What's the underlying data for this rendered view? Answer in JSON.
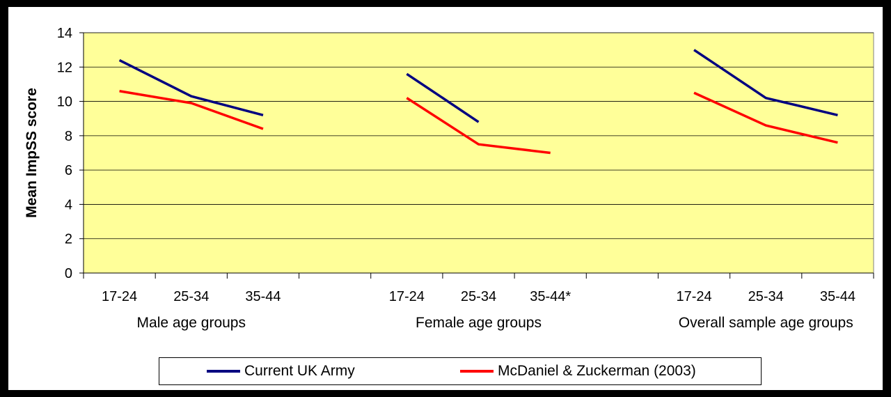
{
  "chart_data": {
    "type": "line",
    "ylabel": "Mean ImpSS score",
    "ylim": [
      0,
      14
    ],
    "yticks": [
      "0",
      "2",
      "4",
      "6",
      "8",
      "10",
      "12",
      "14"
    ],
    "grid": true,
    "plot_background": "#FFFF99",
    "categories": [
      "17-24",
      "25-34",
      "35-44",
      "",
      "17-24",
      "25-34",
      "35-44*",
      "",
      "17-24",
      "25-34",
      "35-44"
    ],
    "groups": [
      {
        "label": "Male age groups",
        "categories": [
          "17-24",
          "25-34",
          "35-44"
        ]
      },
      {
        "label": "Female age groups",
        "categories": [
          "17-24",
          "25-34",
          "35-44*"
        ]
      },
      {
        "label": "Overall sample age groups",
        "categories": [
          "17-24",
          "25-34",
          "35-44"
        ]
      }
    ],
    "series": [
      {
        "name": "Current UK Army",
        "color": "#000080",
        "values": [
          12.4,
          10.3,
          9.2,
          null,
          11.6,
          8.8,
          null,
          null,
          13.0,
          10.2,
          9.2
        ]
      },
      {
        "name": "McDaniel & Zuckerman (2003)",
        "color": "#FF0000",
        "values": [
          10.6,
          9.9,
          8.4,
          null,
          10.2,
          7.5,
          7.0,
          null,
          10.5,
          8.6,
          7.6
        ]
      }
    ],
    "legend_position": "bottom"
  }
}
